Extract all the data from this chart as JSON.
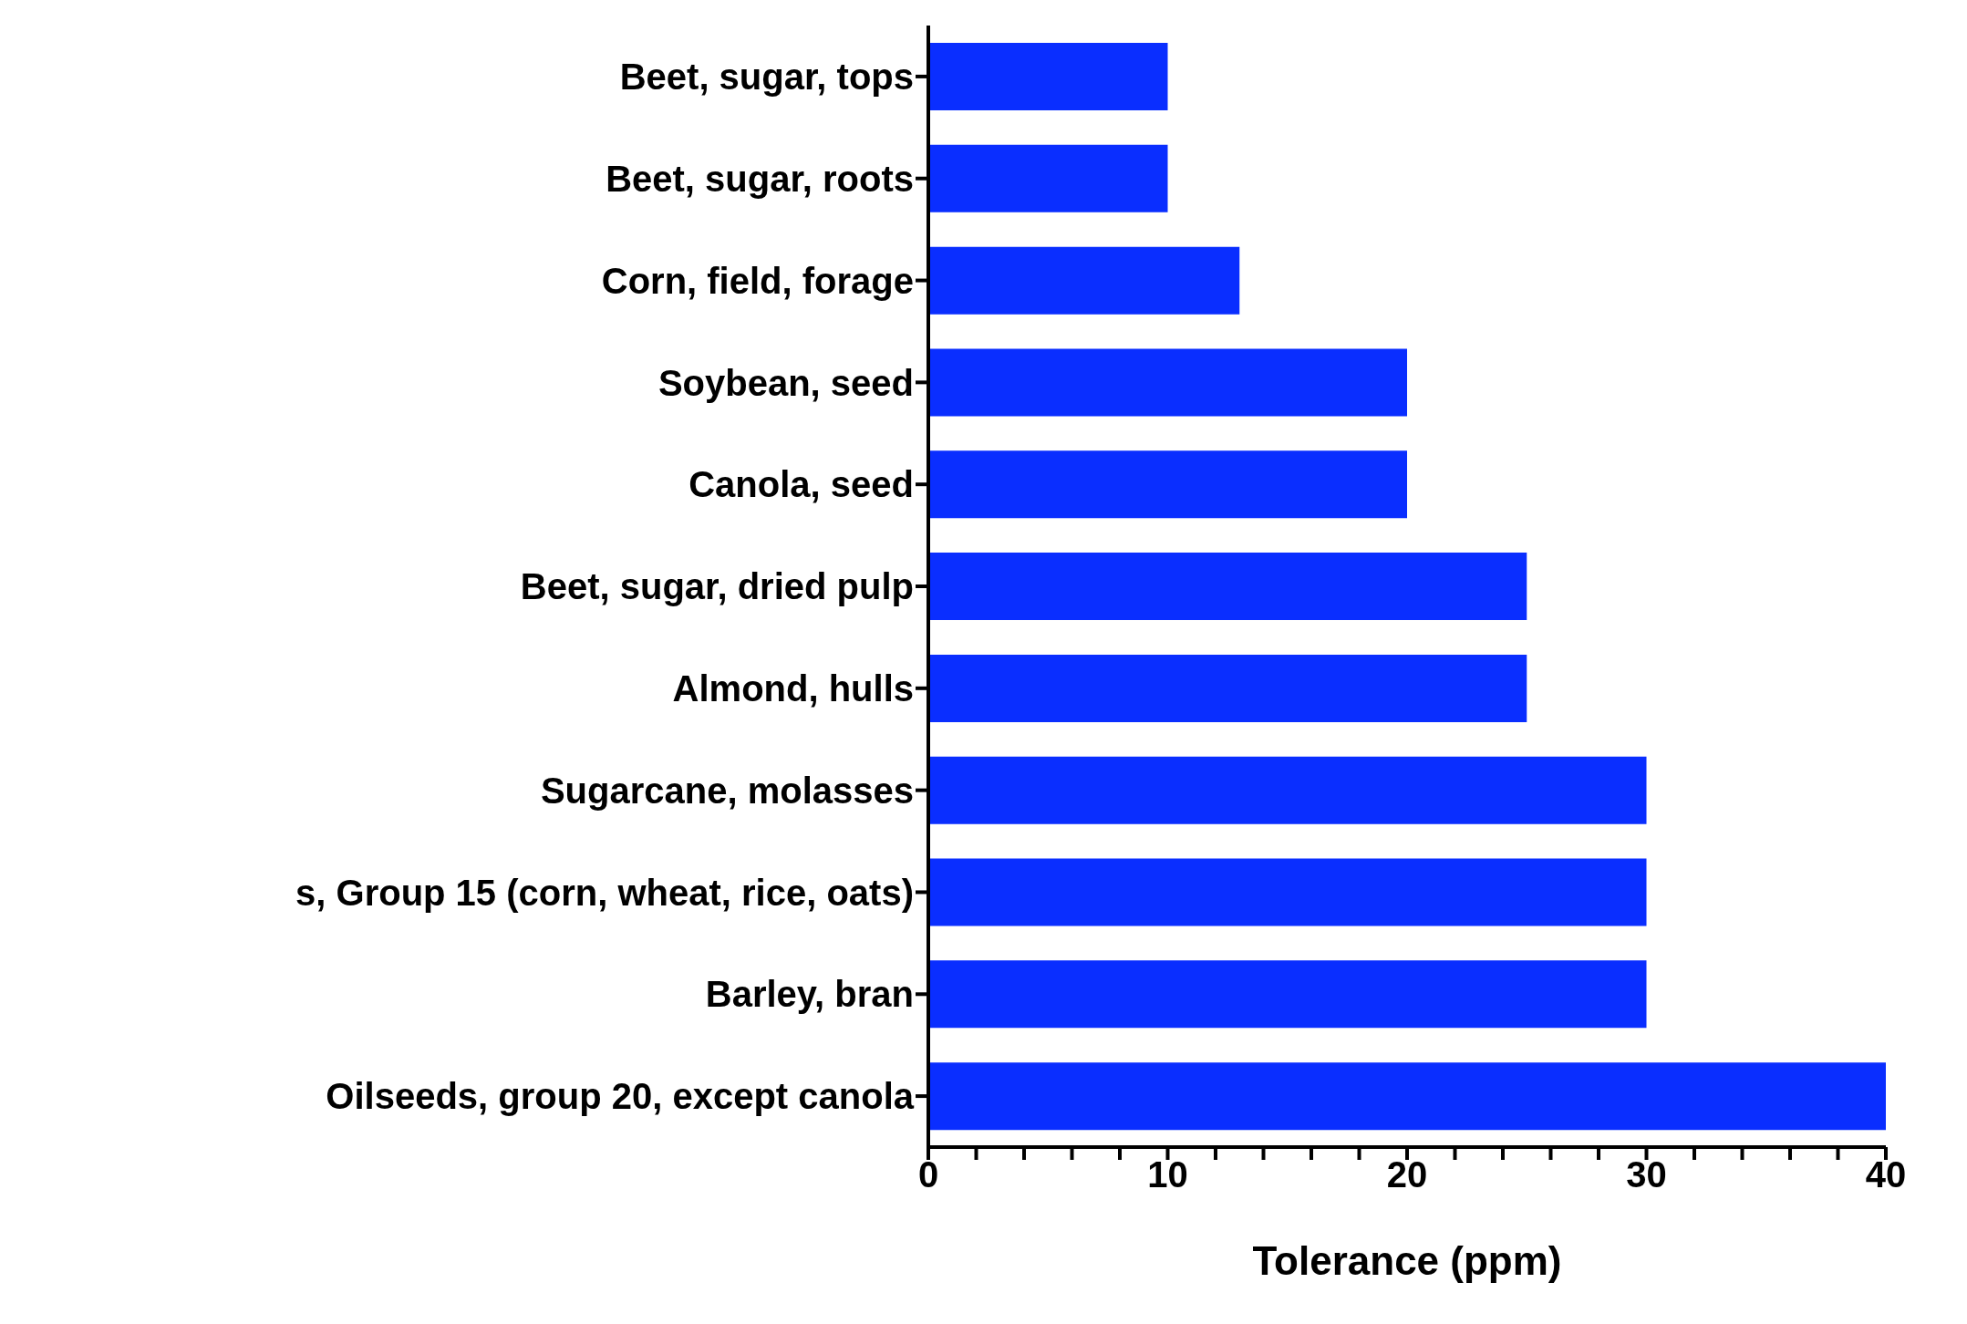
{
  "chart_data": {
    "type": "bar",
    "orientation": "horizontal",
    "xlabel": "Tolerance (ppm)",
    "categories": [
      "Beet, sugar, tops",
      "Beet, sugar, roots",
      "Corn, field, forage",
      "Soybean, seed",
      "Canola, seed",
      "Beet, sugar, dried pulp",
      "Almond, hulls",
      "Sugarcane, molasses",
      "s, Group 15 (corn, wheat, rice, oats)",
      "Barley, bran",
      "Oilseeds, group 20, except canola"
    ],
    "values": [
      10,
      10,
      13,
      20,
      20,
      25,
      25,
      30,
      30,
      30,
      40
    ],
    "color": "#0a2eff",
    "xlim": [
      0,
      40
    ],
    "xticks": [
      0,
      {
        "value": 2,
        "label": null
      },
      {
        "value": 4,
        "label": null
      },
      {
        "value": 6,
        "label": null
      },
      {
        "value": 8,
        "label": null
      },
      10,
      {
        "value": 12,
        "label": null
      },
      {
        "value": 14,
        "label": null
      },
      {
        "value": 16,
        "label": null
      },
      {
        "value": 18,
        "label": null
      },
      20,
      {
        "value": 22,
        "label": null
      },
      {
        "value": 24,
        "label": null
      },
      {
        "value": 26,
        "label": null
      },
      {
        "value": 28,
        "label": null
      },
      30,
      {
        "value": 32,
        "label": null
      },
      {
        "value": 34,
        "label": null
      },
      {
        "value": 36,
        "label": null
      },
      {
        "value": 38,
        "label": null
      },
      40
    ],
    "grid": false,
    "legend": false
  }
}
